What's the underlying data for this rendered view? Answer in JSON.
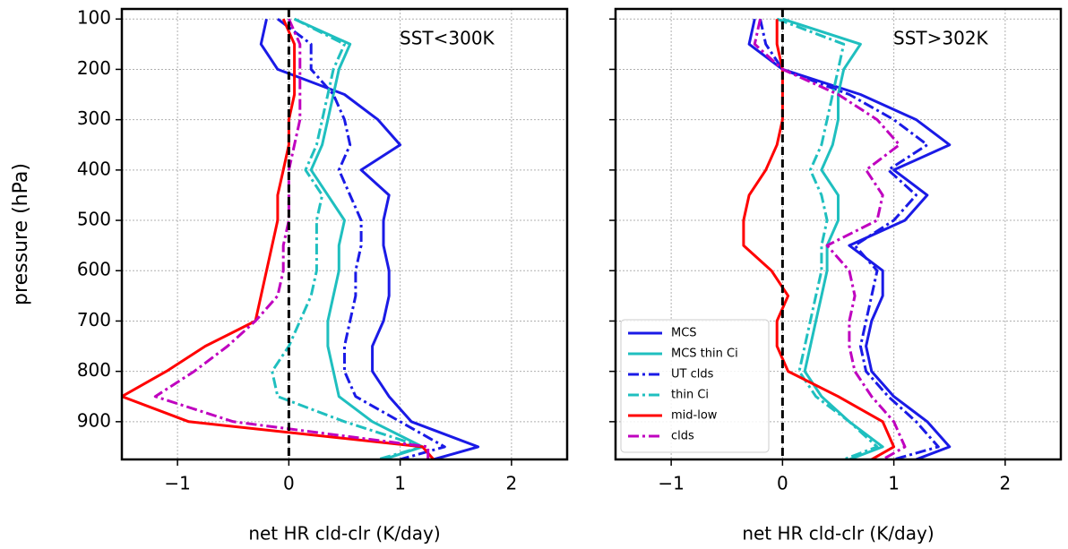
{
  "chart_data": [
    {
      "type": "line",
      "annotation": "SST<300K",
      "xlabel": "net HR cld-clr (K/day)",
      "ylabel": "pressure (hPa)",
      "xlim": [
        -1.5,
        2.5
      ],
      "xticks": [
        {
          "value": -1,
          "label": "−1"
        },
        0,
        1,
        2
      ],
      "ylim": [
        975,
        80
      ],
      "yticks": [
        100,
        200,
        300,
        400,
        500,
        600,
        700,
        800,
        900
      ],
      "show_ytick_labels": true,
      "grid": true,
      "vline": 0,
      "y": [
        100,
        150,
        200,
        250,
        300,
        350,
        400,
        450,
        500,
        550,
        600,
        650,
        700,
        750,
        800,
        850,
        900,
        950,
        975
      ],
      "series": [
        {
          "color": "#1a1ae6",
          "dash": "solid",
          "values": [
            -0.2,
            -0.25,
            -0.1,
            0.5,
            0.8,
            1.0,
            0.65,
            0.9,
            0.85,
            0.85,
            0.9,
            0.9,
            0.85,
            0.75,
            0.75,
            0.9,
            1.1,
            1.7,
            1.3
          ]
        },
        {
          "color": "#1fbfbf",
          "dash": "solid",
          "values": [
            0.05,
            0.55,
            0.45,
            0.4,
            0.35,
            0.3,
            0.2,
            0.35,
            0.5,
            0.45,
            0.45,
            0.4,
            0.35,
            0.35,
            0.4,
            0.45,
            0.75,
            1.2,
            0.85
          ]
        },
        {
          "color": "#1a1ae6",
          "dash": "dashdot",
          "values": [
            -0.1,
            0.2,
            0.2,
            0.4,
            0.5,
            0.55,
            0.45,
            0.55,
            0.65,
            0.65,
            0.6,
            0.6,
            0.55,
            0.5,
            0.5,
            0.6,
            1.0,
            1.4,
            1.0
          ]
        },
        {
          "color": "#1fbfbf",
          "dash": "dashdot",
          "values": [
            0.05,
            0.5,
            0.4,
            0.35,
            0.3,
            0.25,
            0.15,
            0.3,
            0.25,
            0.25,
            0.25,
            0.2,
            0.1,
            0.0,
            -0.15,
            -0.1,
            0.5,
            1.2,
            0.8
          ]
        },
        {
          "color": "#ff0000",
          "dash": "solid",
          "values": [
            -0.05,
            0.05,
            0.05,
            0.05,
            0.0,
            0.0,
            -0.05,
            -0.1,
            -0.1,
            -0.15,
            -0.2,
            -0.25,
            -0.3,
            -0.75,
            -1.1,
            -1.5,
            -0.9,
            1.2,
            1.3
          ]
        },
        {
          "color": "#bf00bf",
          "dash": "dashdot",
          "values": [
            0.0,
            0.1,
            0.1,
            0.1,
            0.1,
            0.05,
            0.0,
            0.0,
            0.0,
            -0.05,
            -0.05,
            -0.1,
            -0.3,
            -0.55,
            -0.85,
            -1.2,
            -0.5,
            1.25,
            1.25
          ]
        }
      ]
    },
    {
      "type": "line",
      "annotation": "SST>302K",
      "xlabel": "net HR cld-clr (K/day)",
      "xlim": [
        -1.5,
        2.5
      ],
      "xticks": [
        {
          "value": -1,
          "label": "−1"
        },
        0,
        1,
        2
      ],
      "ylim": [
        975,
        80
      ],
      "yticks": [
        100,
        200,
        300,
        400,
        500,
        600,
        700,
        800,
        900
      ],
      "show_ytick_labels": false,
      "grid": true,
      "vline": 0,
      "legend": "lower left",
      "y": [
        100,
        150,
        200,
        250,
        300,
        350,
        400,
        450,
        500,
        550,
        600,
        650,
        700,
        750,
        800,
        850,
        900,
        950,
        975
      ],
      "series": [
        {
          "name": "MCS",
          "color": "#1a1ae6",
          "dash": "solid",
          "values": [
            -0.25,
            -0.3,
            0.0,
            0.7,
            1.2,
            1.5,
            1.0,
            1.3,
            1.1,
            0.6,
            0.9,
            0.9,
            0.8,
            0.75,
            0.8,
            1.0,
            1.3,
            1.5,
            1.2
          ]
        },
        {
          "name": "MCS thin Ci",
          "color": "#1fbfbf",
          "dash": "solid",
          "values": [
            0.0,
            0.7,
            0.55,
            0.5,
            0.5,
            0.45,
            0.35,
            0.5,
            0.5,
            0.4,
            0.4,
            0.35,
            0.3,
            0.25,
            0.2,
            0.35,
            0.6,
            0.9,
            0.6
          ]
        },
        {
          "name": "UT clds",
          "color": "#1a1ae6",
          "dash": "dashdot",
          "values": [
            -0.2,
            -0.15,
            0.0,
            0.6,
            1.0,
            1.3,
            0.95,
            1.2,
            1.0,
            0.65,
            0.85,
            0.8,
            0.75,
            0.7,
            0.75,
            0.95,
            1.2,
            1.4,
            1.0
          ]
        },
        {
          "name": "thin Ci",
          "color": "#1fbfbf",
          "dash": "dashdot",
          "values": [
            -0.05,
            0.55,
            0.5,
            0.45,
            0.4,
            0.35,
            0.25,
            0.35,
            0.4,
            0.35,
            0.35,
            0.3,
            0.25,
            0.2,
            0.15,
            0.3,
            0.6,
            0.85,
            0.55
          ]
        },
        {
          "name": "mid-low",
          "color": "#ff0000",
          "dash": "solid",
          "values": [
            -0.05,
            -0.05,
            0.0,
            0.0,
            0.0,
            -0.05,
            -0.15,
            -0.3,
            -0.35,
            -0.35,
            -0.1,
            0.05,
            -0.05,
            -0.05,
            0.05,
            0.5,
            0.9,
            1.0,
            0.8
          ]
        },
        {
          "name": "clds",
          "color": "#bf00bf",
          "dash": "dashdot",
          "values": [
            -0.2,
            -0.25,
            0.0,
            0.5,
            0.85,
            1.05,
            0.75,
            0.9,
            0.85,
            0.4,
            0.6,
            0.65,
            0.6,
            0.6,
            0.65,
            0.8,
            1.0,
            1.1,
            0.9
          ]
        }
      ]
    }
  ]
}
